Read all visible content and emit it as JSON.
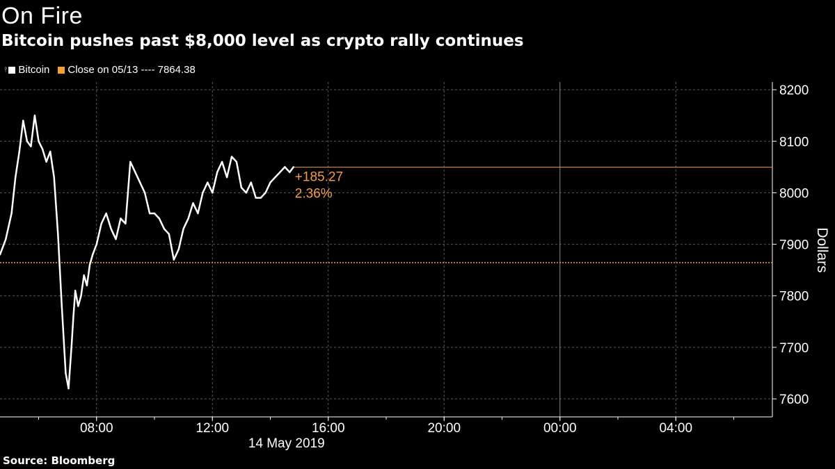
{
  "header": {
    "title": "On Fire",
    "subtitle": "Bitcoin pushes past $8,000 level as crypto rally continues"
  },
  "legend": {
    "series_label": "Bitcoin",
    "close_label": "Close on 05/13 ---- 7864.38"
  },
  "annotation": {
    "change": "+185.27",
    "percent": "2.36%"
  },
  "footer": {
    "source": "Source: Bloomberg"
  },
  "colors": {
    "background": "#000000",
    "line": "#ffffff",
    "accent": "#f5a030",
    "grid": "#5a5a5a"
  },
  "chart_data": {
    "type": "line",
    "title": "On Fire",
    "subtitle": "Bitcoin pushes past $8,000 level as crypto rally continues",
    "xlabel": "14 May 2019",
    "ylabel": "Dollars",
    "ylim": [
      7565,
      8215
    ],
    "xlim": [
      "04:40",
      "07:20 (+1 day)"
    ],
    "x_ticks": [
      "08:00",
      "12:00",
      "16:00",
      "20:00",
      "00:00",
      "04:00"
    ],
    "x_date_label": "14 May 2019",
    "y_ticks": [
      7600,
      7700,
      7800,
      7900,
      8000,
      8100,
      8200
    ],
    "grid": true,
    "legend_position": "top-left",
    "reference_line": {
      "label": "Close on 05/13",
      "value": 7864.38
    },
    "last_value_line": 8049.65,
    "series": [
      {
        "name": "Bitcoin",
        "x": [
          "04:40",
          "04:52",
          "05:04",
          "05:12",
          "05:20",
          "05:28",
          "05:36",
          "05:44",
          "05:52",
          "06:00",
          "06:08",
          "06:16",
          "06:24",
          "06:32",
          "06:40",
          "06:48",
          "06:56",
          "07:02",
          "07:08",
          "07:12",
          "07:16",
          "07:22",
          "07:28",
          "07:34",
          "07:40",
          "07:46",
          "07:52",
          "08:00",
          "08:10",
          "08:20",
          "08:30",
          "08:40",
          "08:50",
          "09:00",
          "09:10",
          "09:20",
          "09:30",
          "09:40",
          "09:50",
          "10:00",
          "10:10",
          "10:20",
          "10:30",
          "10:40",
          "10:50",
          "11:00",
          "11:10",
          "11:20",
          "11:30",
          "11:40",
          "11:50",
          "12:00",
          "12:10",
          "12:20",
          "12:30",
          "12:40",
          "12:50",
          "13:00",
          "13:10",
          "13:20",
          "13:30",
          "13:40",
          "13:50",
          "14:00",
          "14:10",
          "14:20",
          "14:30",
          "14:40",
          "14:48"
        ],
        "values": [
          7880,
          7910,
          7960,
          8030,
          8080,
          8140,
          8100,
          8090,
          8150,
          8100,
          8085,
          8060,
          8080,
          8030,
          7920,
          7780,
          7650,
          7620,
          7700,
          7760,
          7810,
          7780,
          7800,
          7840,
          7820,
          7860,
          7880,
          7900,
          7940,
          7960,
          7930,
          7910,
          7950,
          7940,
          8060,
          8040,
          8020,
          8000,
          7960,
          7960,
          7950,
          7930,
          7920,
          7870,
          7890,
          7930,
          7950,
          7980,
          7960,
          8000,
          8020,
          8000,
          8040,
          8060,
          8030,
          8070,
          8060,
          8010,
          8000,
          8020,
          7990,
          7990,
          8000,
          8020,
          8030,
          8040,
          8050,
          8040,
          8050
        ]
      }
    ]
  }
}
